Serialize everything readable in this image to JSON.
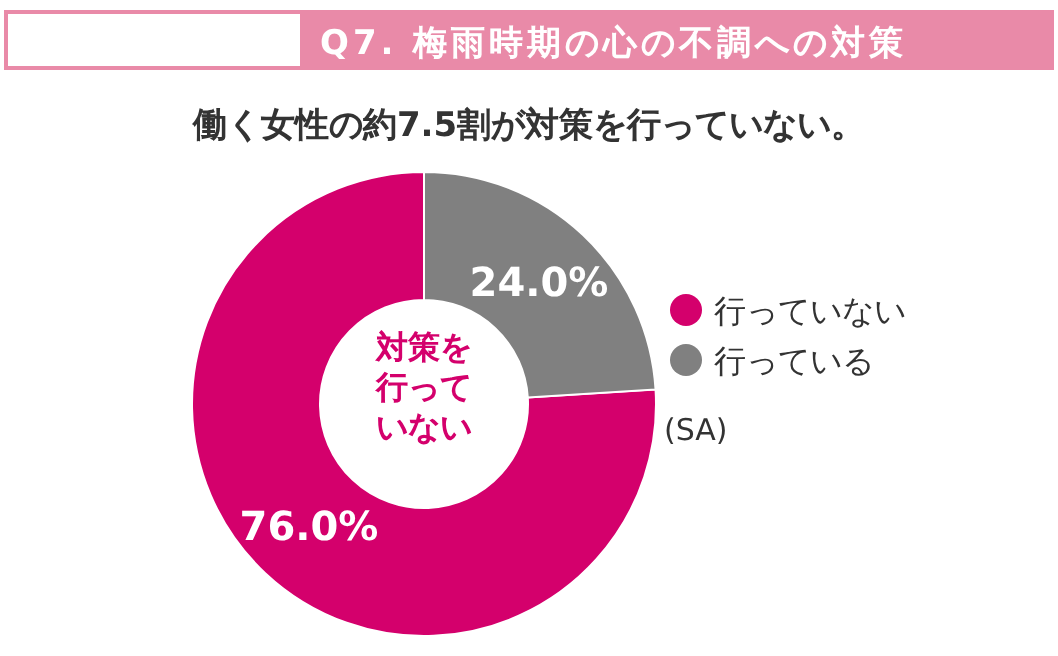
{
  "chart_data": {
    "type": "donut",
    "title": "Q7. 梅雨時期の心の不調への対策",
    "subtitle": "働く女性の約7.5割が対策を行っていない。",
    "categories": [
      "行っていない",
      "行っている"
    ],
    "values": [
      76.0,
      24.0
    ],
    "colors": [
      "#d4006c",
      "#808080"
    ],
    "value_labels": [
      "76.0%",
      "24.0%"
    ],
    "legend": "right",
    "annotations": [
      "対策を行っていない",
      "(SA)"
    ]
  }
}
